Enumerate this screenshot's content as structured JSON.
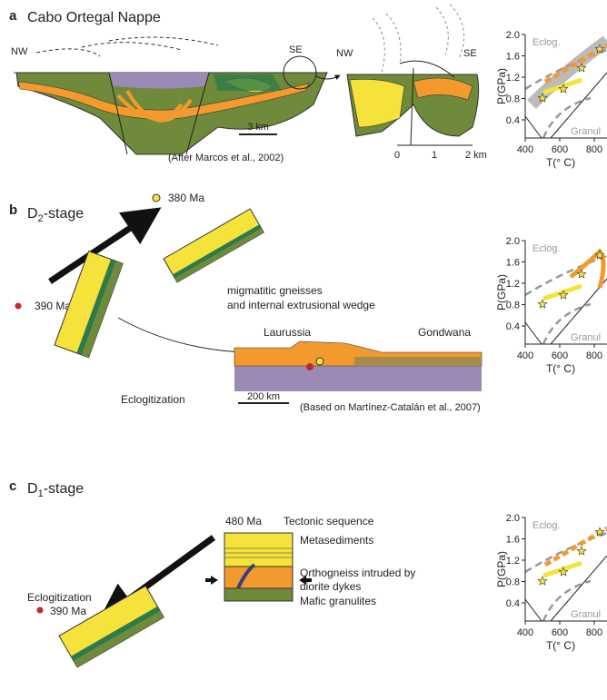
{
  "panel_a": {
    "letter": "a",
    "title": "Cabo Ortegal Nappe",
    "nw": "NW",
    "se": "SE",
    "scale": "3 km",
    "credit": "(After Marcos et al., 2002)",
    "inset": {
      "nw": "NW",
      "se": "SE",
      "scale_labels": [
        "0",
        "1",
        "2 km"
      ]
    }
  },
  "panel_b": {
    "letter": "b",
    "stage": {
      "main": "D",
      "sub": "2",
      "rest": "-stage"
    },
    "age_yellow": "380 Ma",
    "age_red": "390 Ma",
    "note": [
      "migmatitic gneisses",
      "and internal extrusional wedge"
    ],
    "left_plate": "Laurussia",
    "right_plate": "Gondwana",
    "process": "Eclogitization",
    "scale": "200 km",
    "credit": "(Based on Martínez-Catalán et al., 2007)"
  },
  "panel_c": {
    "letter": "c",
    "stage": {
      "main": "D",
      "sub": "1",
      "rest": "-stage"
    },
    "age_top": "480 Ma",
    "sequence_title": "Tectonic sequence",
    "units": [
      "Metasediments",
      "Orthogneiss intruded by",
      "diorite dykes",
      "Mafic granulites"
    ],
    "process": "Eclogitization",
    "age": "390 Ma"
  },
  "pt_axes": {
    "ylabel": "P(GPa)",
    "xlabel": "T(° C)",
    "yticks": [
      "2.0",
      "1.6",
      "1.2",
      "0.8",
      "0.4"
    ],
    "xticks": [
      "400",
      "600",
      "800"
    ],
    "eclogite": "Eclog.",
    "granulite": "Granul"
  }
}
